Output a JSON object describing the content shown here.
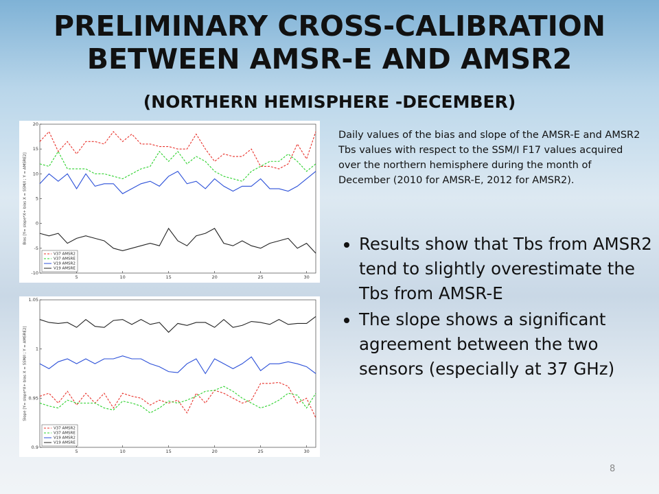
{
  "slide": {
    "title": [
      "PRELIMINARY CROSS-CALIBRATION",
      "BETWEEN AMSR-E AND AMSR2"
    ],
    "subtitle": "(NORTHERN HEMISPHERE -DECEMBER)",
    "description": "Daily values of the bias and slope of the AMSR-E and AMSR2 Tbs values with respect to the SSM/I F17 values acquired over the northern hemisphere during the month of December (2010 for AMSR-E, 2012 for AMSR2).",
    "bullets": [
      "Results show that Tbs from AMSR2 tend to slightly overestimate the Tbs from AMSR-E",
      "The slope shows a significant agreement between the two sensors (especially at 37 GHz)"
    ],
    "page_number": 8
  },
  "chart_data": [
    {
      "type": "line",
      "y_label": "Bias [Y= slope*X+ bias  X = SSM/I ; Y = AMSRE2]",
      "x": [
        1,
        2,
        3,
        4,
        5,
        6,
        7,
        8,
        9,
        10,
        11,
        12,
        13,
        14,
        15,
        16,
        17,
        18,
        19,
        20,
        21,
        22,
        23,
        24,
        25,
        26,
        27,
        28,
        29,
        30,
        31
      ],
      "xlim": [
        1,
        31
      ],
      "xticks": [
        5,
        10,
        15,
        20,
        25,
        30
      ],
      "ylim": [
        -10,
        20
      ],
      "yticks": [
        -10,
        -5,
        0,
        5,
        10,
        15,
        20
      ],
      "legend": "lower left",
      "series": [
        {
          "name": "V37 AMSR2",
          "color": "#e8312a",
          "line_style": "dashed",
          "values": [
            16.5,
            18.5,
            14.5,
            16.5,
            14,
            16.5,
            16.5,
            16,
            18.5,
            16.5,
            18,
            16,
            16,
            15.5,
            15.5,
            15,
            15,
            18,
            15,
            12.5,
            14,
            13.5,
            13.5,
            15,
            11.5,
            11.5,
            11,
            12,
            16,
            13,
            18.5
          ]
        },
        {
          "name": "V37 AMSRE",
          "color": "#2bd12b",
          "line_style": "dashed",
          "values": [
            12,
            11.5,
            14.5,
            11,
            11,
            11,
            10,
            10,
            9.5,
            9,
            10,
            11,
            11.5,
            14.5,
            12.5,
            14.5,
            12,
            13.5,
            12.5,
            10.5,
            9.5,
            9,
            8.5,
            10.5,
            11.5,
            12.5,
            12.5,
            14,
            12.5,
            10.5,
            12
          ]
        },
        {
          "name": "V19 AMSR2",
          "color": "#2a4fd8",
          "line_style": "solid",
          "values": [
            8,
            10,
            8.5,
            10,
            7,
            10,
            7.5,
            8,
            8,
            6,
            7,
            8,
            8.5,
            7.5,
            9.5,
            10.5,
            8,
            8.5,
            7,
            9,
            7.5,
            6.5,
            7.5,
            7.5,
            9,
            7,
            7,
            6.5,
            7.5,
            9,
            10.5
          ]
        },
        {
          "name": "V19 AMSRE",
          "color": "#222222",
          "line_style": "solid",
          "values": [
            -2,
            -2.5,
            -2,
            -4,
            -3,
            -2.5,
            -3,
            -3.5,
            -5,
            -5.5,
            -5,
            -4.5,
            -4,
            -4.5,
            -1,
            -3.5,
            -4.5,
            -2.5,
            -2,
            -1,
            -4,
            -4.5,
            -3.5,
            -4.5,
            -5,
            -4,
            -3.5,
            -3,
            -5,
            -4,
            -6
          ]
        }
      ]
    },
    {
      "type": "line",
      "y_label": "Slope [Y= slope*X+ bias  X = SSM/I ; Y = AMSRE2]",
      "x": [
        1,
        2,
        3,
        4,
        5,
        6,
        7,
        8,
        9,
        10,
        11,
        12,
        13,
        14,
        15,
        16,
        17,
        18,
        19,
        20,
        21,
        22,
        23,
        24,
        25,
        26,
        27,
        28,
        29,
        30,
        31
      ],
      "xlim": [
        1,
        31
      ],
      "xticks": [
        5,
        10,
        15,
        20,
        25,
        30
      ],
      "ylim": [
        0.9,
        1.05
      ],
      "yticks": [
        0.9,
        0.95,
        1,
        1.05
      ],
      "legend": "lower left",
      "series": [
        {
          "name": "V37 AMSR2",
          "color": "#e8312a",
          "line_style": "dashed",
          "values": [
            0.952,
            0.955,
            0.945,
            0.957,
            0.943,
            0.955,
            0.945,
            0.955,
            0.94,
            0.955,
            0.952,
            0.95,
            0.943,
            0.948,
            0.945,
            0.948,
            0.935,
            0.955,
            0.945,
            0.958,
            0.955,
            0.95,
            0.945,
            0.948,
            0.965,
            0.965,
            0.966,
            0.962,
            0.945,
            0.95,
            0.93
          ]
        },
        {
          "name": "V37 AMSRE",
          "color": "#2bd12b",
          "line_style": "dashed",
          "values": [
            0.945,
            0.942,
            0.94,
            0.948,
            0.945,
            0.945,
            0.945,
            0.94,
            0.938,
            0.947,
            0.945,
            0.942,
            0.935,
            0.94,
            0.947,
            0.945,
            0.948,
            0.952,
            0.957,
            0.958,
            0.962,
            0.957,
            0.95,
            0.945,
            0.94,
            0.943,
            0.948,
            0.955,
            0.953,
            0.94,
            0.955
          ]
        },
        {
          "name": "V19 AMSR2",
          "color": "#2a4fd8",
          "line_style": "solid",
          "values": [
            0.985,
            0.98,
            0.987,
            0.99,
            0.985,
            0.99,
            0.985,
            0.99,
            0.99,
            0.993,
            0.99,
            0.99,
            0.985,
            0.982,
            0.977,
            0.976,
            0.985,
            0.99,
            0.975,
            0.99,
            0.985,
            0.98,
            0.985,
            0.992,
            0.978,
            0.985,
            0.985,
            0.987,
            0.985,
            0.982,
            0.975
          ]
        },
        {
          "name": "V19 AMSRE",
          "color": "#222222",
          "line_style": "solid",
          "values": [
            1.03,
            1.027,
            1.026,
            1.027,
            1.022,
            1.03,
            1.023,
            1.022,
            1.029,
            1.03,
            1.025,
            1.03,
            1.025,
            1.027,
            1.017,
            1.026,
            1.024,
            1.027,
            1.027,
            1.022,
            1.03,
            1.022,
            1.024,
            1.028,
            1.027,
            1.025,
            1.03,
            1.025,
            1.026,
            1.026,
            1.033
          ]
        }
      ]
    }
  ]
}
